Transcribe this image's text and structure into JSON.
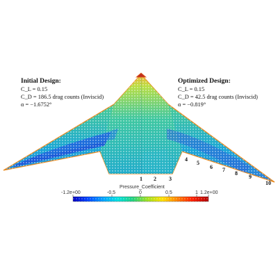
{
  "initial_design": {
    "title": "Initial Design:",
    "lines": [
      "C_L = 0.15",
      "C_D = 186.5 drag counts (Inviscid)",
      "α = −1.6752°"
    ]
  },
  "optimized_design": {
    "title": "Optimized Design:",
    "lines": [
      "C_L = 0.15",
      "C_D = 42.5 drag counts (Inviscid)",
      "α = −0.819°"
    ]
  },
  "section_labels": [
    "1",
    "2",
    "3",
    "4",
    "5",
    "6",
    "7",
    "8",
    "9",
    "10"
  ],
  "colorbar": {
    "title": "Pressure_Coefficient",
    "min_label": "-1.2e+00",
    "max_label": "1.2e+00",
    "tick_labels": [
      "-0.5",
      "0",
      "0.5",
      "1"
    ],
    "colors": [
      "#0000c0",
      "#0044ff",
      "#00a0ff",
      "#00e0e0",
      "#20d080",
      "#a0e020",
      "#ffe000",
      "#ff8000",
      "#ff2000",
      "#b00000"
    ]
  }
}
